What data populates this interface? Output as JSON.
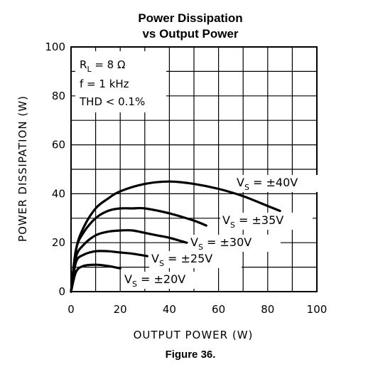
{
  "chart_data": {
    "type": "line",
    "title": [
      "Power Dissipation",
      "vs Output Power"
    ],
    "xlabel": "OUTPUT POWER (W)",
    "ylabel": "POWER DISSIPATION (W)",
    "xlim": [
      0,
      100
    ],
    "ylim": [
      0,
      100
    ],
    "xticks": [
      0,
      20,
      40,
      60,
      80,
      100
    ],
    "yticks": [
      0,
      20,
      40,
      60,
      80,
      100
    ],
    "grid": true,
    "annotations": [
      "R_L = 8 Ω",
      "f = 1 kHz",
      "THD < 0.1%"
    ],
    "series": [
      {
        "name": "V_S = ±40V",
        "x": [
          0,
          2,
          5,
          10,
          15,
          20,
          30,
          40,
          50,
          60,
          70,
          80,
          85
        ],
        "y": [
          0,
          17,
          26,
          34,
          38,
          41,
          44,
          45,
          44,
          42,
          39,
          35,
          33
        ]
      },
      {
        "name": "V_S = ±35V",
        "x": [
          0,
          2,
          5,
          10,
          15,
          20,
          25,
          30,
          40,
          50,
          55
        ],
        "y": [
          0,
          17,
          24,
          30,
          33,
          34,
          34,
          34,
          32,
          29,
          27
        ]
      },
      {
        "name": "V_S = ±30V",
        "x": [
          0,
          2,
          5,
          10,
          15,
          20,
          25,
          30,
          35,
          40,
          47
        ],
        "y": [
          0,
          14,
          19,
          23,
          24.5,
          25,
          25,
          24,
          23,
          22,
          20
        ]
      },
      {
        "name": "V_S = ±25V",
        "x": [
          0,
          2,
          5,
          10,
          15,
          20,
          25,
          31
        ],
        "y": [
          0,
          12,
          15,
          16.5,
          16.5,
          16,
          15.5,
          14.5
        ]
      },
      {
        "name": "V_S = ±20V",
        "x": [
          0,
          2,
          5,
          10,
          15,
          20
        ],
        "y": [
          0,
          8,
          10.5,
          11,
          10.5,
          9.5
        ]
      }
    ],
    "series_labels": [
      {
        "V": "V",
        "S": "S",
        "rest": " = ±40V"
      },
      {
        "V": "V",
        "S": "S",
        "rest": " = ±35V"
      },
      {
        "V": "V",
        "S": "S",
        "rest": " = ±30V"
      },
      {
        "V": "V",
        "S": "S",
        "rest": " = ±25V"
      },
      {
        "V": "V",
        "S": "S",
        "rest": " = ±20V"
      }
    ],
    "caption": "Figure 36."
  }
}
